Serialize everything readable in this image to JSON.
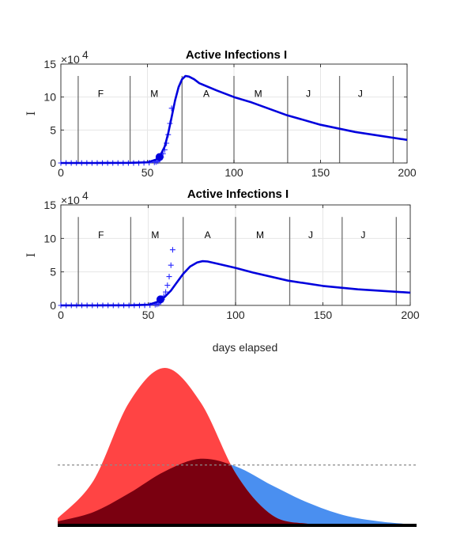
{
  "chart_data": [
    {
      "type": "line",
      "title": "Active Infections  I",
      "ylabel": "I",
      "xlabel": "",
      "xlim": [
        0,
        200
      ],
      "ylim": [
        0,
        150000
      ],
      "y_exponent_label": "×10",
      "y_exponent_power": "4",
      "xticks": [
        "0",
        "50",
        "100",
        "150",
        "200"
      ],
      "yticks": [
        "0",
        "5",
        "10",
        "15"
      ],
      "x_tick_values": [
        0,
        50,
        100,
        150,
        200
      ],
      "y_tick_values": [
        0,
        50000,
        100000,
        150000
      ],
      "grid": true,
      "month_lines": [
        10,
        40,
        70,
        100,
        131,
        161,
        192
      ],
      "month_labels": [
        {
          "label": "F",
          "x": 23
        },
        {
          "label": "M",
          "x": 54
        },
        {
          "label": "A",
          "x": 84
        },
        {
          "label": "M",
          "x": 114
        },
        {
          "label": "J",
          "x": 143
        },
        {
          "label": "J",
          "x": 173
        }
      ],
      "model_curve": {
        "color": "#0000dd",
        "x": [
          0,
          20,
          40,
          50,
          55,
          57,
          60,
          62,
          64,
          66,
          68,
          70,
          72,
          74,
          77,
          80,
          90,
          100,
          110,
          130,
          150,
          170,
          200
        ],
        "y": [
          0,
          0,
          200,
          1000,
          5000,
          9000,
          25000,
          45000,
          70000,
          95000,
          115000,
          127000,
          132000,
          131000,
          127000,
          121000,
          110000,
          100000,
          92000,
          73000,
          58000,
          47000,
          35000
        ]
      },
      "observed": {
        "color": "#2828ff",
        "x": [
          0,
          3,
          6,
          9,
          12,
          15,
          18,
          21,
          24,
          27,
          30,
          33,
          36,
          39,
          42,
          45,
          48,
          51,
          54,
          55,
          56,
          57,
          58,
          59,
          60,
          61,
          62,
          63,
          64
        ],
        "y": [
          0,
          0,
          0,
          0,
          0,
          0,
          0,
          0,
          0,
          0,
          0,
          0,
          0,
          0,
          0,
          0,
          200,
          400,
          1000,
          1500,
          2500,
          5000,
          9000,
          14000,
          20000,
          30000,
          43000,
          60000,
          83000
        ]
      },
      "marker_point": {
        "x": 57,
        "y": 9000
      }
    },
    {
      "type": "line",
      "title": "Active Infections  I",
      "ylabel": "I",
      "xlabel": "days elapsed",
      "xlim": [
        0,
        200
      ],
      "ylim": [
        0,
        150000
      ],
      "y_exponent_label": "×10",
      "y_exponent_power": "4",
      "xticks": [
        "0",
        "50",
        "100",
        "150",
        "200"
      ],
      "yticks": [
        "0",
        "5",
        "10",
        "15"
      ],
      "x_tick_values": [
        0,
        50,
        100,
        150,
        200
      ],
      "y_tick_values": [
        0,
        50000,
        100000,
        150000
      ],
      "grid": true,
      "month_lines": [
        10,
        40,
        70,
        100,
        131,
        161,
        192
      ],
      "month_labels": [
        {
          "label": "F",
          "x": 23
        },
        {
          "label": "M",
          "x": 54
        },
        {
          "label": "A",
          "x": 84
        },
        {
          "label": "M",
          "x": 114
        },
        {
          "label": "J",
          "x": 143
        },
        {
          "label": "J",
          "x": 173
        }
      ],
      "model_curve": {
        "color": "#0000dd",
        "x": [
          0,
          20,
          40,
          50,
          55,
          58,
          60,
          63,
          66,
          70,
          74,
          78,
          81,
          84,
          90,
          100,
          110,
          130,
          150,
          170,
          200
        ],
        "y": [
          0,
          0,
          200,
          1000,
          5000,
          9000,
          14000,
          22000,
          33000,
          47000,
          58000,
          64000,
          66000,
          65500,
          62000,
          56000,
          49000,
          37000,
          29000,
          24000,
          19000
        ]
      },
      "observed": {
        "color": "#2828ff",
        "x": [
          0,
          3,
          6,
          9,
          12,
          15,
          18,
          21,
          24,
          27,
          30,
          33,
          36,
          39,
          42,
          45,
          48,
          51,
          54,
          55,
          56,
          57,
          58,
          59,
          60,
          61,
          62,
          63,
          64
        ],
        "y": [
          0,
          0,
          0,
          0,
          0,
          0,
          0,
          0,
          0,
          0,
          0,
          0,
          0,
          0,
          0,
          0,
          200,
          400,
          1000,
          1500,
          2500,
          5000,
          9000,
          14000,
          20000,
          30000,
          43000,
          60000,
          83000
        ]
      },
      "marker_point": {
        "x": 57,
        "y": 9000
      }
    },
    {
      "type": "area",
      "title": "",
      "xlabel": "",
      "ylabel": "",
      "x": [
        0,
        10,
        20,
        30,
        40,
        50,
        60,
        70,
        80,
        90,
        100
      ],
      "series": [
        {
          "color": "#ff4444",
          "values": [
            0.04,
            0.28,
            0.78,
            1.0,
            0.78,
            0.32,
            0.06,
            0.005,
            0,
            0,
            0
          ]
        },
        {
          "color": "#4a8ff0",
          "values": [
            0.02,
            0.08,
            0.2,
            0.34,
            0.42,
            0.37,
            0.25,
            0.14,
            0.06,
            0.02,
            0.0
          ]
        }
      ],
      "overlap_color": "#7a0010",
      "ylim": [
        0,
        1.0
      ],
      "capacity_line": 0.38
    }
  ]
}
